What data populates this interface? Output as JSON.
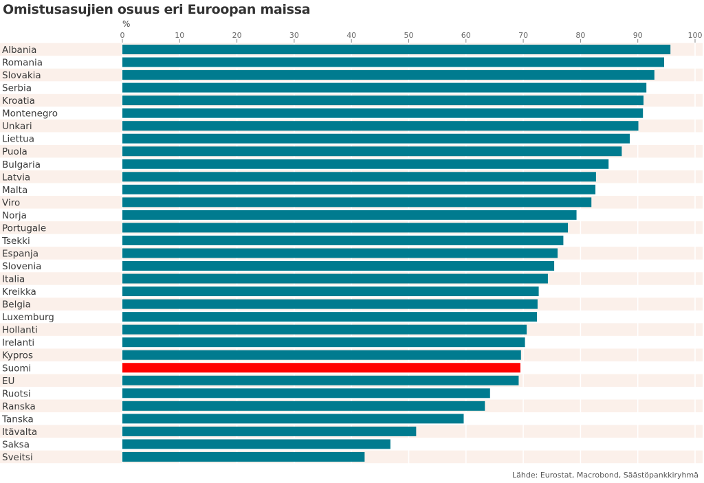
{
  "chart_data": {
    "type": "bar",
    "orientation": "horizontal",
    "title": "Omistusasujien osuus eri Euroopan maissa",
    "unit_label": "%",
    "source": "Lähde: Eurostat, Macrobond, Säästöpankkiryhmä",
    "xlim": [
      0,
      100
    ],
    "xticks": [
      0,
      10,
      20,
      30,
      40,
      50,
      60,
      70,
      80,
      90,
      100
    ],
    "grid": true,
    "categories": [
      "Albania",
      "Romania",
      "Slovakia",
      "Serbia",
      "Kroatia",
      "Montenegro",
      "Unkari",
      "Liettua",
      "Puola",
      "Bulgaria",
      "Latvia",
      "Malta",
      "Viro",
      "Norja",
      "Portugale",
      "Tsekki",
      "Espanja",
      "Slovenia",
      "Italia",
      "Kreikka",
      "Belgia",
      "Luxemburg",
      "Hollanti",
      "Irelanti",
      "Kypros",
      "Suomi",
      "EU",
      "Ruotsi",
      "Ranska",
      "Tanska",
      "Itävalta",
      "Saksa",
      "Sveitsi"
    ],
    "values": [
      95.7,
      94.6,
      92.9,
      91.5,
      91.0,
      90.9,
      90.1,
      88.6,
      87.2,
      84.9,
      82.7,
      82.6,
      81.9,
      79.3,
      77.8,
      77.0,
      76.0,
      75.4,
      74.3,
      72.7,
      72.5,
      72.4,
      70.6,
      70.3,
      69.6,
      69.5,
      69.2,
      64.2,
      63.3,
      59.6,
      51.3,
      46.8,
      42.3
    ],
    "highlight": "Suomi",
    "colors": {
      "bar": "#007b8f",
      "highlight": "#ff0000",
      "band": "#fbf0ea"
    }
  }
}
